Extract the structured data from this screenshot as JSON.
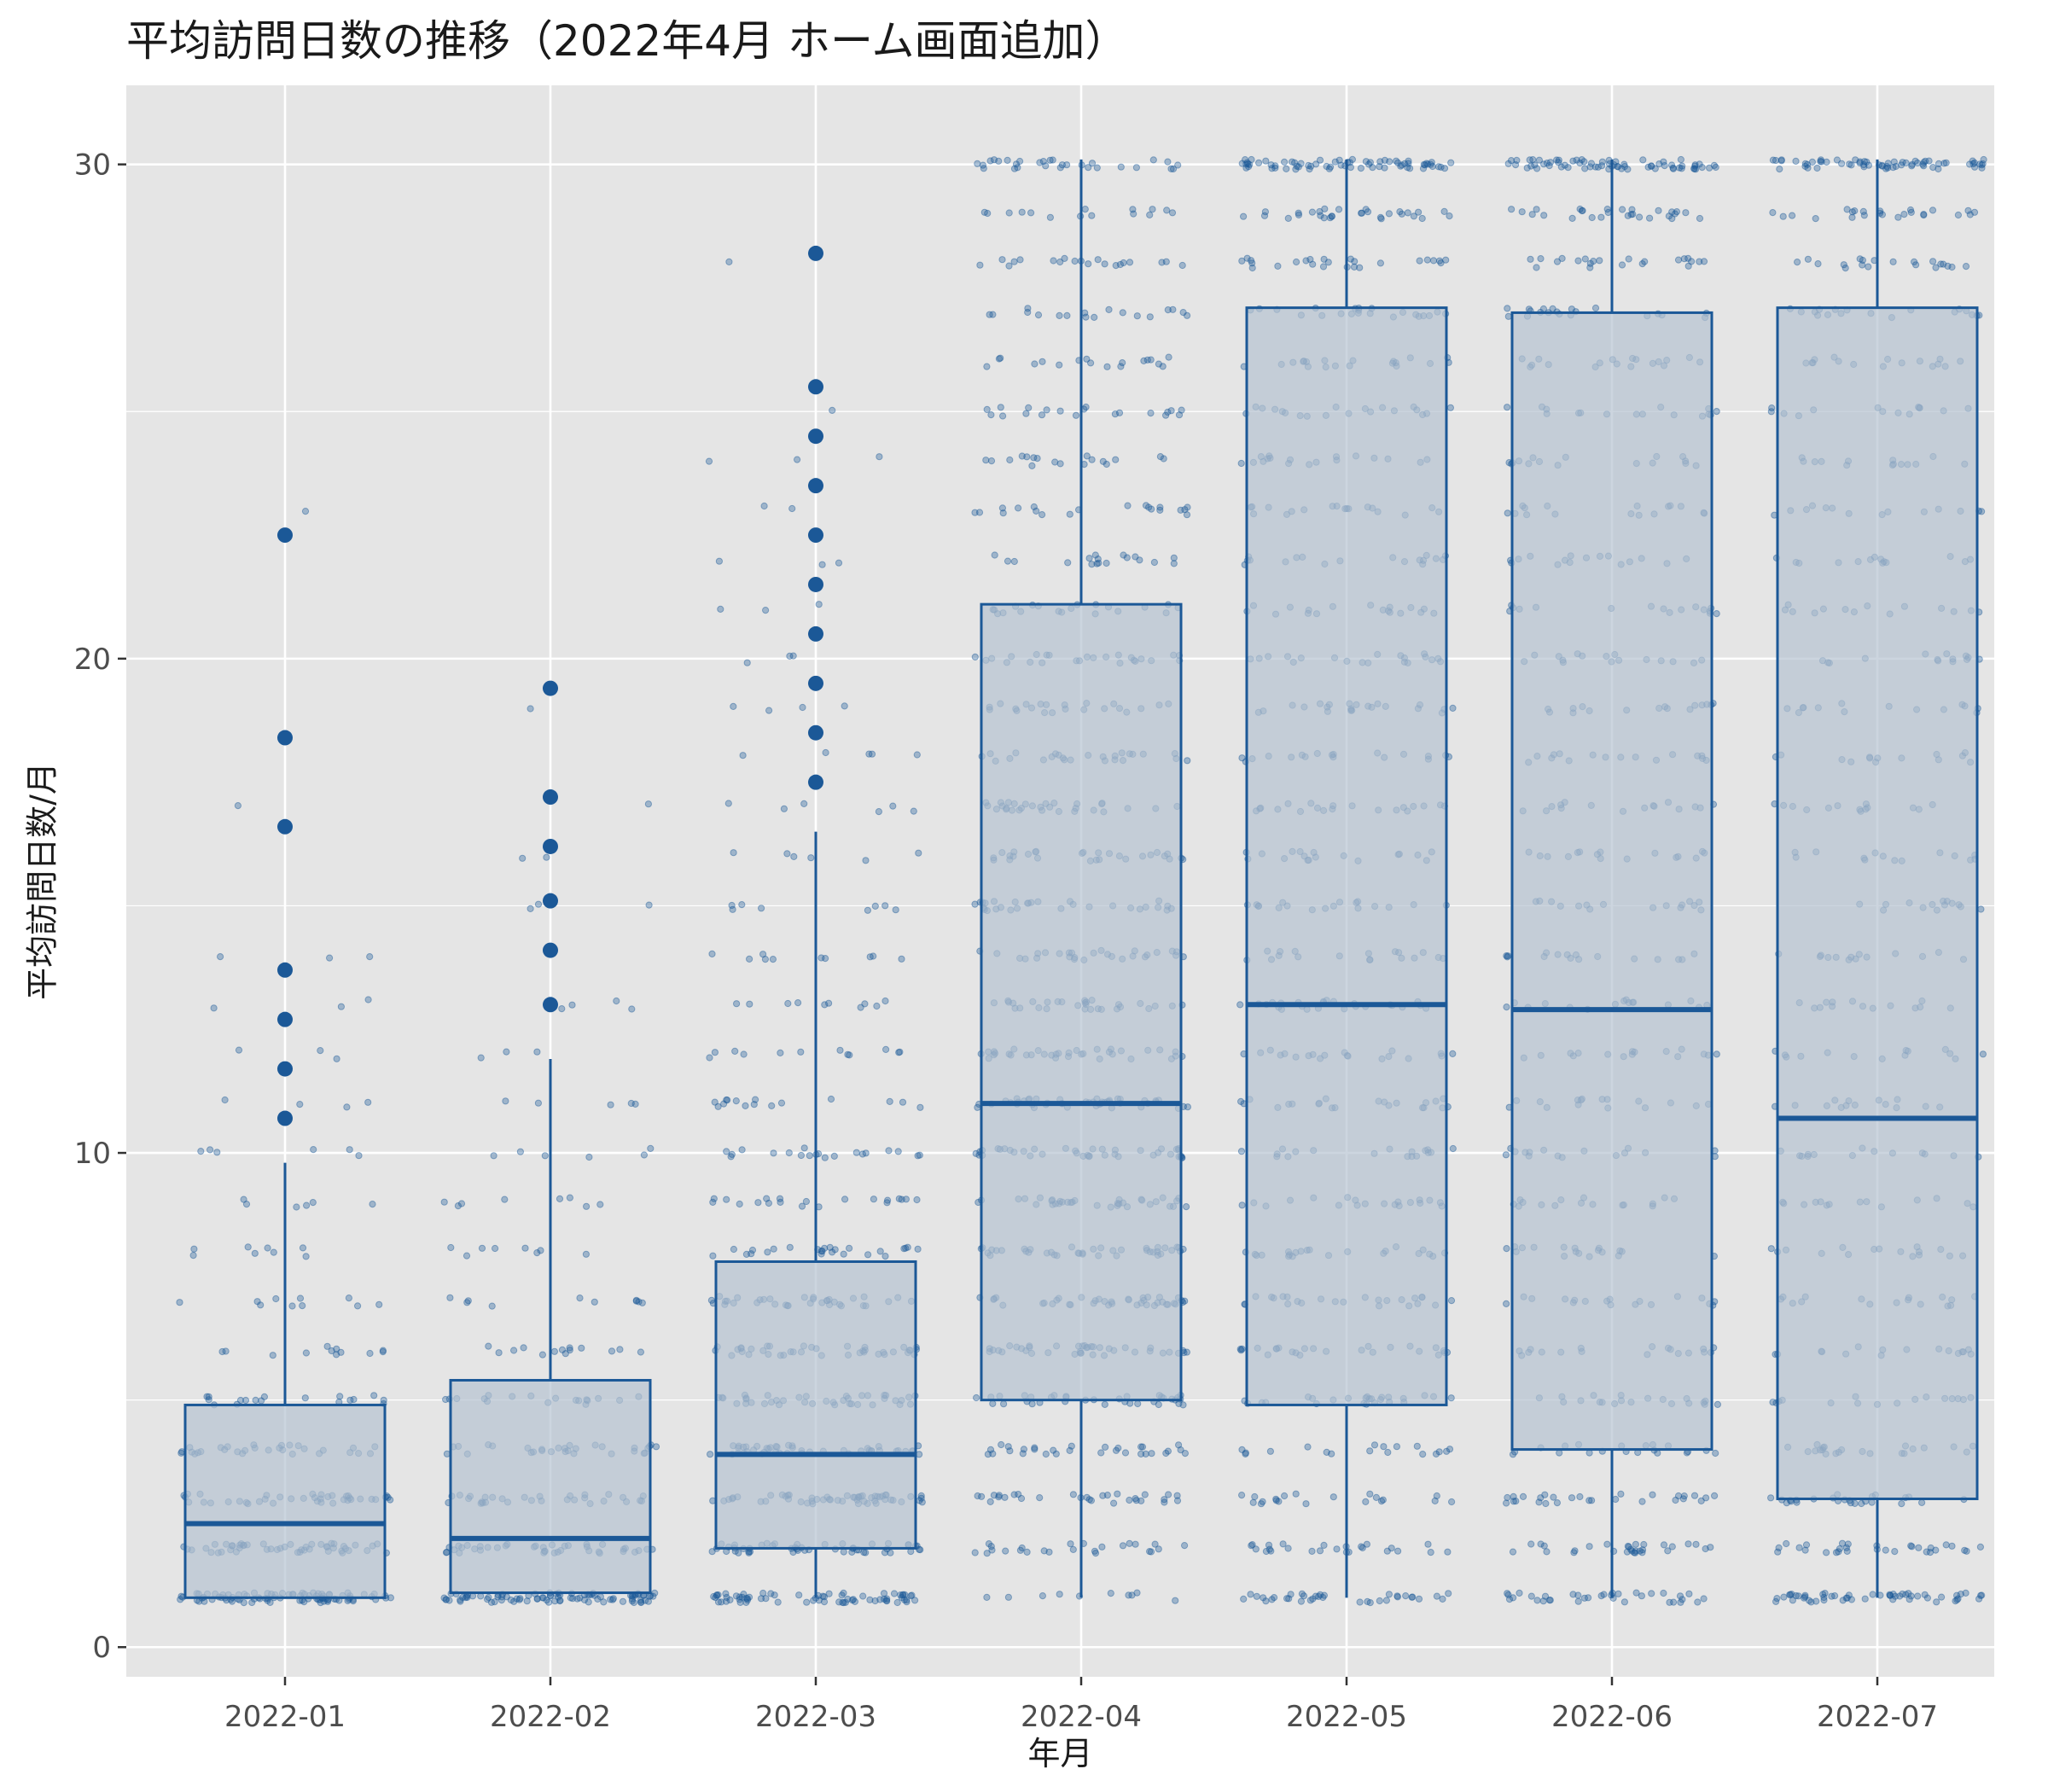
{
  "chart_data": {
    "type": "box",
    "title": "平均訪問日数の推移（2022年4月 ホーム画面追加）",
    "xlabel": "年月",
    "ylabel": "平均訪問日数/月",
    "categories": [
      "2022-01",
      "2022-02",
      "2022-03",
      "2022-04",
      "2022-05",
      "2022-06",
      "2022-07"
    ],
    "ylim": [
      -0.6,
      31.6
    ],
    "yticks": [
      0,
      10,
      20,
      30
    ],
    "grid": true,
    "legend": "none",
    "colors": {
      "panel": "#e5e5e5",
      "grid": "#ffffff",
      "box_fill": "#b7c3d2",
      "box_line": "#1b5897",
      "point": "#1b5897"
    },
    "boxes": [
      {
        "category": "2022-01",
        "whisker_low": 1,
        "q1": 1,
        "median": 2.5,
        "q3": 4.9,
        "whisker_high": 9.8,
        "outliers": [
          10.7,
          11.7,
          12.7,
          13.7,
          16.6,
          18.4,
          22.5
        ]
      },
      {
        "category": "2022-02",
        "whisker_low": 1.1,
        "q1": 1.1,
        "median": 2.2,
        "q3": 5.4,
        "whisker_high": 11.9,
        "outliers": [
          13,
          14.1,
          15.1,
          16.2,
          17.2,
          19.4
        ]
      },
      {
        "category": "2022-03",
        "whisker_low": 1,
        "q1": 2,
        "median": 3.9,
        "q3": 7.8,
        "whisker_high": 16.5,
        "outliers": [
          17.5,
          18.5,
          19.5,
          20.5,
          21.5,
          22.5,
          23.5,
          24.5,
          25.5,
          28.2
        ]
      },
      {
        "category": "2022-04",
        "whisker_low": 1,
        "q1": 5,
        "median": 11,
        "q3": 21.1,
        "whisker_high": 30.1,
        "outliers": []
      },
      {
        "category": "2022-05",
        "whisker_low": 1,
        "q1": 4.9,
        "median": 13,
        "q3": 27.1,
        "whisker_high": 30.1,
        "outliers": []
      },
      {
        "category": "2022-06",
        "whisker_low": 1,
        "q1": 4,
        "median": 12.9,
        "q3": 27,
        "whisker_high": 30.1,
        "outliers": []
      },
      {
        "category": "2022-07",
        "whisker_low": 1,
        "q1": 3,
        "median": 10.7,
        "q3": 27.1,
        "whisker_high": 30.1,
        "outliers": []
      }
    ],
    "jitter": [
      {
        "category": "2022-01",
        "levels": [
          [
            1,
            90
          ],
          [
            2,
            50
          ],
          [
            3,
            40
          ],
          [
            4,
            30
          ],
          [
            5,
            18
          ],
          [
            6,
            12
          ],
          [
            7,
            10
          ],
          [
            8,
            8
          ],
          [
            9,
            6
          ],
          [
            10,
            6
          ],
          [
            11,
            4
          ],
          [
            12,
            3
          ],
          [
            13,
            3
          ],
          [
            14,
            3
          ],
          [
            17,
            1
          ],
          [
            23,
            1
          ]
        ]
      },
      {
        "category": "2022-02",
        "levels": [
          [
            1,
            90
          ],
          [
            2,
            40
          ],
          [
            3,
            30
          ],
          [
            4,
            30
          ],
          [
            5,
            18
          ],
          [
            6,
            14
          ],
          [
            7,
            10
          ],
          [
            8,
            8
          ],
          [
            9,
            8
          ],
          [
            10,
            6
          ],
          [
            11,
            5
          ],
          [
            12,
            3
          ],
          [
            13,
            4
          ],
          [
            15,
            3
          ],
          [
            16,
            2
          ],
          [
            17,
            1
          ],
          [
            19,
            1
          ]
        ]
      },
      {
        "category": "2022-03",
        "levels": [
          [
            1,
            70
          ],
          [
            2,
            50
          ],
          [
            3,
            55
          ],
          [
            4,
            45
          ],
          [
            5,
            40
          ],
          [
            6,
            40
          ],
          [
            7,
            35
          ],
          [
            8,
            25
          ],
          [
            9,
            20
          ],
          [
            10,
            20
          ],
          [
            11,
            15
          ],
          [
            12,
            12
          ],
          [
            13,
            10
          ],
          [
            14,
            10
          ],
          [
            15,
            8
          ],
          [
            16,
            6
          ],
          [
            17,
            6
          ],
          [
            18,
            5
          ],
          [
            19,
            4
          ],
          [
            20,
            3
          ],
          [
            21,
            3
          ],
          [
            22,
            3
          ],
          [
            23,
            2
          ],
          [
            24,
            3
          ],
          [
            25,
            1
          ],
          [
            28,
            1
          ]
        ]
      },
      {
        "category": "2022-04",
        "levels": [
          [
            1,
            10
          ],
          [
            2,
            25
          ],
          [
            3,
            30
          ],
          [
            4,
            30
          ],
          [
            5,
            35
          ],
          [
            6,
            40
          ],
          [
            7,
            40
          ],
          [
            8,
            40
          ],
          [
            9,
            35
          ],
          [
            10,
            40
          ],
          [
            11,
            45
          ],
          [
            12,
            35
          ],
          [
            13,
            30
          ],
          [
            14,
            28
          ],
          [
            15,
            30
          ],
          [
            16,
            28
          ],
          [
            17,
            30
          ],
          [
            18,
            25
          ],
          [
            19,
            22
          ],
          [
            20,
            25
          ],
          [
            21,
            20
          ],
          [
            22,
            18
          ],
          [
            23,
            20
          ],
          [
            24,
            18
          ],
          [
            25,
            20
          ],
          [
            26,
            18
          ],
          [
            27,
            18
          ],
          [
            28,
            20
          ],
          [
            29,
            15
          ],
          [
            30,
            30
          ]
        ]
      },
      {
        "category": "2022-05",
        "levels": [
          [
            1,
            35
          ],
          [
            2,
            25
          ],
          [
            3,
            20
          ],
          [
            4,
            18
          ],
          [
            5,
            25
          ],
          [
            6,
            25
          ],
          [
            7,
            25
          ],
          [
            8,
            22
          ],
          [
            9,
            20
          ],
          [
            10,
            18
          ],
          [
            11,
            22
          ],
          [
            12,
            20
          ],
          [
            13,
            25
          ],
          [
            14,
            18
          ],
          [
            15,
            18
          ],
          [
            16,
            18
          ],
          [
            17,
            20
          ],
          [
            18,
            18
          ],
          [
            19,
            22
          ],
          [
            20,
            20
          ],
          [
            21,
            18
          ],
          [
            22,
            18
          ],
          [
            23,
            18
          ],
          [
            24,
            18
          ],
          [
            25,
            20
          ],
          [
            26,
            20
          ],
          [
            27,
            22
          ],
          [
            28,
            25
          ],
          [
            29,
            30
          ],
          [
            30,
            70
          ]
        ]
      },
      {
        "category": "2022-06",
        "levels": [
          [
            1,
            35
          ],
          [
            2,
            30
          ],
          [
            3,
            28
          ],
          [
            4,
            20
          ],
          [
            5,
            20
          ],
          [
            6,
            18
          ],
          [
            7,
            18
          ],
          [
            8,
            18
          ],
          [
            9,
            16
          ],
          [
            10,
            16
          ],
          [
            11,
            16
          ],
          [
            12,
            16
          ],
          [
            13,
            16
          ],
          [
            14,
            16
          ],
          [
            15,
            16
          ],
          [
            16,
            16
          ],
          [
            17,
            16
          ],
          [
            18,
            16
          ],
          [
            19,
            16
          ],
          [
            20,
            16
          ],
          [
            21,
            16
          ],
          [
            22,
            16
          ],
          [
            23,
            16
          ],
          [
            24,
            16
          ],
          [
            25,
            16
          ],
          [
            26,
            18
          ],
          [
            27,
            20
          ],
          [
            28,
            22
          ],
          [
            29,
            28
          ],
          [
            30,
            70
          ]
        ]
      },
      {
        "category": "2022-07",
        "levels": [
          [
            1,
            55
          ],
          [
            2,
            30
          ],
          [
            3,
            25
          ],
          [
            4,
            22
          ],
          [
            5,
            16
          ],
          [
            6,
            16
          ],
          [
            7,
            16
          ],
          [
            8,
            16
          ],
          [
            9,
            14
          ],
          [
            10,
            14
          ],
          [
            11,
            14
          ],
          [
            12,
            14
          ],
          [
            13,
            14
          ],
          [
            14,
            14
          ],
          [
            15,
            14
          ],
          [
            16,
            14
          ],
          [
            17,
            14
          ],
          [
            18,
            14
          ],
          [
            19,
            14
          ],
          [
            20,
            14
          ],
          [
            21,
            14
          ],
          [
            22,
            14
          ],
          [
            23,
            14
          ],
          [
            24,
            14
          ],
          [
            25,
            14
          ],
          [
            26,
            16
          ],
          [
            27,
            18
          ],
          [
            28,
            20
          ],
          [
            29,
            24
          ],
          [
            30,
            65
          ]
        ]
      }
    ]
  }
}
